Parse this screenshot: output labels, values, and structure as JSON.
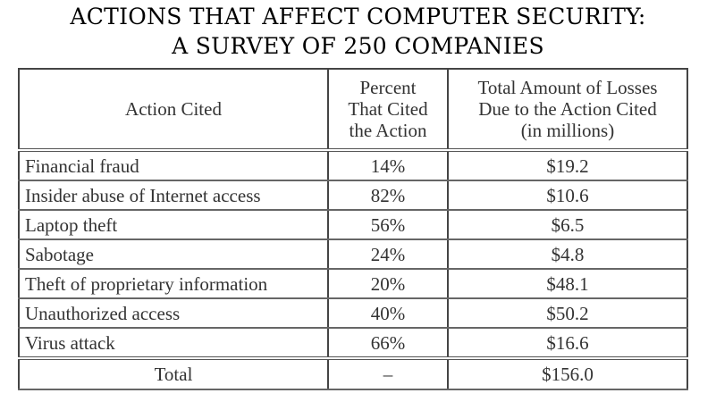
{
  "title": {
    "line1": "ACTIONS THAT AFFECT COMPUTER SECURITY:",
    "line2": "A SURVEY OF 250 COMPANIES"
  },
  "table": {
    "headers": {
      "action": "Action Cited",
      "percent": [
        "Percent",
        "That Cited",
        "the Action"
      ],
      "losses": [
        "Total Amount of Losses",
        "Due to the Action Cited",
        "(in millions)"
      ]
    },
    "rows": [
      {
        "action": "Financial fraud",
        "percent": "14%",
        "losses": "$19.2"
      },
      {
        "action": "Insider abuse of Internet access",
        "percent": "82%",
        "losses": "$10.6"
      },
      {
        "action": "Laptop theft",
        "percent": "56%",
        "losses": "$6.5"
      },
      {
        "action": "Sabotage",
        "percent": "24%",
        "losses": "$4.8"
      },
      {
        "action": "Theft of proprietary information",
        "percent": "20%",
        "losses": "$48.1"
      },
      {
        "action": "Unauthorized access",
        "percent": "40%",
        "losses": "$50.2"
      },
      {
        "action": "Virus attack",
        "percent": "66%",
        "losses": "$16.6"
      }
    ],
    "total": {
      "label": "Total",
      "percent": "–",
      "losses": "$156.0"
    }
  }
}
